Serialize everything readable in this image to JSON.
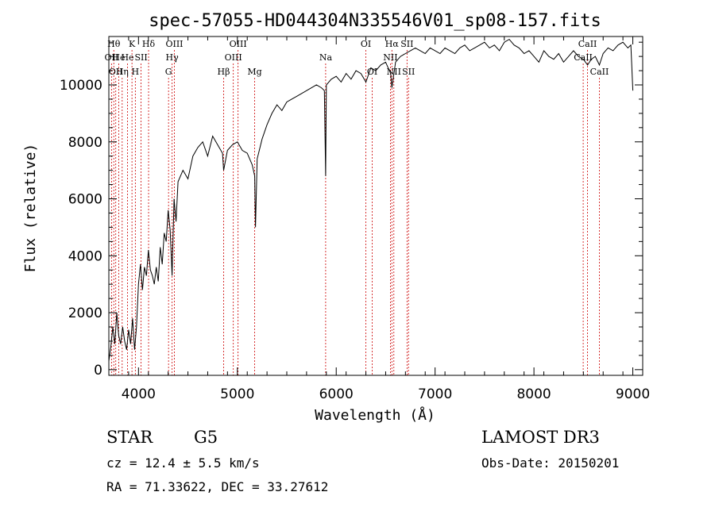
{
  "chart_data": {
    "type": "line",
    "title": "spec-57055-HD044304N335546V01_sp08-157.fits",
    "xlabel": "Wavelength (Å)",
    "ylabel": "Flux (relative)",
    "xlim": [
      3700,
      9100
    ],
    "ylim": [
      -200,
      11700
    ],
    "xticks": [
      4000,
      5000,
      6000,
      7000,
      8000,
      9000
    ],
    "yticks": [
      0,
      2000,
      4000,
      6000,
      8000,
      10000
    ],
    "grid": false,
    "line_color": "#000000",
    "marker_color": "#cc0000",
    "series": [
      {
        "x": [
          3700,
          3720,
          3740,
          3760,
          3780,
          3800,
          3820,
          3840,
          3860,
          3880,
          3900,
          3920,
          3940,
          3960,
          3980,
          4000,
          4020,
          4040,
          4060,
          4080,
          4100,
          4120,
          4140,
          4160,
          4180,
          4200,
          4220,
          4240,
          4260,
          4280,
          4300,
          4320,
          4340,
          4360,
          4380,
          4400,
          4450,
          4500,
          4550,
          4600,
          4650,
          4700,
          4750,
          4800,
          4850,
          4861,
          4900,
          4950,
          5000,
          5050,
          5100,
          5150,
          5175,
          5183,
          5200,
          5250,
          5300,
          5350,
          5400,
          5450,
          5500,
          5550,
          5600,
          5650,
          5700,
          5750,
          5800,
          5850,
          5880,
          5893,
          5900,
          5950,
          6000,
          6050,
          6100,
          6150,
          6200,
          6250,
          6300,
          6350,
          6400,
          6450,
          6500,
          6550,
          6563,
          6600,
          6650,
          6700,
          6750,
          6800,
          6850,
          6900,
          6950,
          7000,
          7050,
          7100,
          7150,
          7200,
          7250,
          7300,
          7350,
          7400,
          7450,
          7500,
          7550,
          7600,
          7650,
          7700,
          7750,
          7800,
          7850,
          7900,
          7950,
          8000,
          8050,
          8100,
          8150,
          8200,
          8250,
          8300,
          8350,
          8400,
          8450,
          8500,
          8542,
          8580,
          8620,
          8662,
          8700,
          8750,
          8800,
          8850,
          8900,
          8950,
          8980,
          9000
        ],
        "y": [
          300,
          800,
          1500,
          900,
          2000,
          1200,
          900,
          1500,
          1000,
          700,
          1400,
          900,
          1800,
          700,
          1500,
          3000,
          3700,
          2800,
          3600,
          3300,
          4200,
          3500,
          3300,
          3000,
          3600,
          3100,
          4300,
          3700,
          4800,
          4500,
          5600,
          4900,
          3300,
          6000,
          5200,
          6600,
          7000,
          6700,
          7500,
          7800,
          8000,
          7500,
          8200,
          7900,
          7600,
          7000,
          7700,
          7900,
          8000,
          7700,
          7600,
          7200,
          6800,
          5000,
          7400,
          8100,
          8600,
          9000,
          9300,
          9100,
          9400,
          9500,
          9600,
          9700,
          9800,
          9900,
          10000,
          9900,
          9800,
          6800,
          10000,
          10200,
          10300,
          10100,
          10400,
          10200,
          10500,
          10400,
          10100,
          10600,
          10500,
          10700,
          10800,
          10400,
          9900,
          10800,
          11000,
          11100,
          11200,
          11300,
          11200,
          11100,
          11300,
          11200,
          11100,
          11300,
          11200,
          11100,
          11300,
          11400,
          11200,
          11300,
          11400,
          11500,
          11300,
          11400,
          11200,
          11500,
          11600,
          11400,
          11300,
          11100,
          11200,
          11000,
          10800,
          11200,
          11000,
          10900,
          11100,
          10800,
          11000,
          11200,
          11000,
          10900,
          10700,
          10900,
          11000,
          10700,
          11100,
          11300,
          11200,
          11400,
          11500,
          11300,
          11400,
          9800
        ]
      }
    ],
    "lines": [
      {
        "wl": 3727,
        "label": "OII",
        "row": 2
      },
      {
        "wl": 3750,
        "label": "Hθ",
        "row": 1
      },
      {
        "wl": 3770,
        "label": "OII",
        "row": 3
      },
      {
        "wl": 3800,
        "label": "He",
        "row": 2
      },
      {
        "wl": 3835,
        "label": "Hη",
        "row": 3
      },
      {
        "wl": 3889,
        "label": "He",
        "row": 2
      },
      {
        "wl": 3934,
        "label": "K",
        "row": 1
      },
      {
        "wl": 3968,
        "label": "H",
        "row": 3
      },
      {
        "wl": 4026,
        "label": "SII",
        "row": 2
      },
      {
        "wl": 4102,
        "label": "Hδ",
        "row": 1
      },
      {
        "wl": 4304,
        "label": "G",
        "row": 3
      },
      {
        "wl": 4340,
        "label": "Hγ",
        "row": 2
      },
      {
        "wl": 4363,
        "label": "OIII",
        "row": 1
      },
      {
        "wl": 4861,
        "label": "Hβ",
        "row": 3
      },
      {
        "wl": 4959,
        "label": "OIII",
        "row": 2
      },
      {
        "wl": 5007,
        "label": "OIII",
        "row": 1
      },
      {
        "wl": 5175,
        "label": "Mg",
        "row": 3
      },
      {
        "wl": 5893,
        "label": "Na",
        "row": 2
      },
      {
        "wl": 6300,
        "label": "OI",
        "row": 1
      },
      {
        "wl": 6364,
        "label": "OI",
        "row": 3
      },
      {
        "wl": 6548,
        "label": "NII",
        "row": 2
      },
      {
        "wl": 6563,
        "label": "Hα",
        "row": 1
      },
      {
        "wl": 6583,
        "label": "NII",
        "row": 3
      },
      {
        "wl": 6716,
        "label": "SII",
        "row": 1
      },
      {
        "wl": 6731,
        "label": "SII",
        "row": 3
      },
      {
        "wl": 8498,
        "label": "CaII",
        "row": 2
      },
      {
        "wl": 8542,
        "label": "CaII",
        "row": 1
      },
      {
        "wl": 8662,
        "label": "CaII",
        "row": 3
      }
    ]
  },
  "info": {
    "class": "STAR",
    "subclass": "G5",
    "survey": "LAMOST DR3",
    "cz": "cz = 12.4 ± 5.5 km/s",
    "obs_date": "Obs-Date: 20150201",
    "radec": "RA =  71.33622, DEC =  33.27612"
  }
}
